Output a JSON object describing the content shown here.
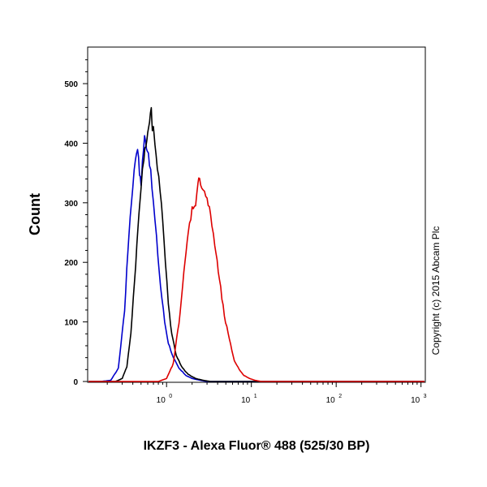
{
  "chart_data": {
    "type": "line",
    "title": "",
    "xlabel": "IKZF3 - Alexa Fluor® 488 (525/30 BP)",
    "ylabel": "Count",
    "x_scale": "log",
    "xlim": [
      0.12,
      1100
    ],
    "ylim": [
      0,
      560
    ],
    "x_ticks": [
      {
        "value": 1,
        "base": "10",
        "exp": "0"
      },
      {
        "value": 10,
        "base": "10",
        "exp": "1"
      },
      {
        "value": 100,
        "base": "10",
        "exp": "2"
      },
      {
        "value": 1000,
        "base": "10",
        "exp": "3"
      }
    ],
    "y_ticks": [
      0,
      100,
      200,
      300,
      400,
      500
    ],
    "grid": false,
    "annotation": "Copyright (c) 2015 Abcam Plc",
    "series": [
      {
        "color": "#0000cc",
        "x": [
          0.12,
          0.17,
          0.22,
          0.27,
          0.32,
          0.36,
          0.4,
          0.43,
          0.455,
          0.48,
          0.5,
          0.52,
          0.55,
          0.58,
          0.61,
          0.65,
          0.7,
          0.76,
          0.85,
          0.95,
          1.05,
          1.2,
          1.4,
          1.7,
          2.0,
          2.5,
          3.0,
          1100
        ],
        "y": [
          0,
          0,
          2,
          22,
          120,
          250,
          330,
          375,
          395,
          350,
          330,
          370,
          410,
          395,
          385,
          350,
          300,
          240,
          160,
          100,
          65,
          40,
          22,
          10,
          5,
          2,
          0,
          0
        ]
      },
      {
        "color": "#000000",
        "x": [
          0.12,
          0.25,
          0.3,
          0.34,
          0.38,
          0.42,
          0.46,
          0.5,
          0.54,
          0.57,
          0.6,
          0.63,
          0.66,
          0.68,
          0.7,
          0.73,
          0.78,
          0.84,
          0.9,
          0.97,
          1.05,
          1.15,
          1.3,
          1.5,
          1.8,
          2.2,
          2.7,
          3.3,
          1100
        ],
        "y": [
          0,
          0,
          5,
          25,
          80,
          170,
          260,
          330,
          375,
          400,
          420,
          440,
          455,
          420,
          430,
          400,
          360,
          320,
          270,
          200,
          130,
          80,
          45,
          25,
          12,
          5,
          2,
          0,
          0
        ]
      },
      {
        "color": "#dd0000",
        "x": [
          0.12,
          0.8,
          1.0,
          1.2,
          1.4,
          1.6,
          1.8,
          2.0,
          2.2,
          2.35,
          2.45,
          2.6,
          2.8,
          3.0,
          3.3,
          3.7,
          4.2,
          4.8,
          5.5,
          6.3,
          7.2,
          8.2,
          9.5,
          11,
          13,
          1100
        ],
        "y": [
          0,
          0,
          5,
          30,
          100,
          180,
          250,
          290,
          300,
          330,
          345,
          325,
          320,
          305,
          280,
          230,
          170,
          110,
          70,
          35,
          20,
          10,
          5,
          2,
          0,
          0
        ]
      }
    ]
  }
}
